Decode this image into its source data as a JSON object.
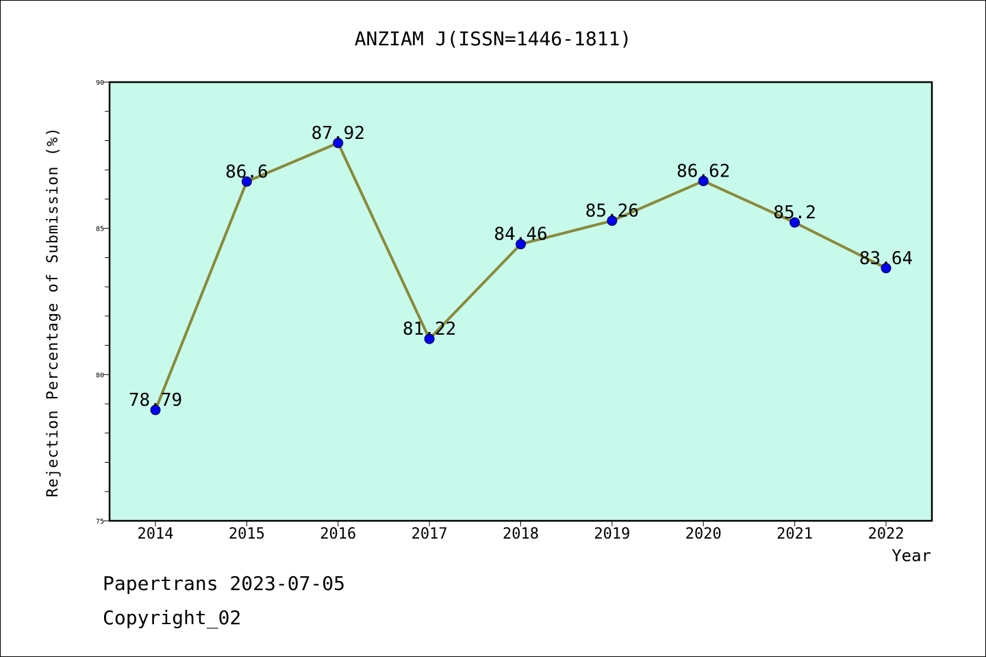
{
  "chart_data": {
    "type": "line",
    "title": "ANZIAM J(ISSN=1446-1811)",
    "xlabel": "Year",
    "ylabel": "Rejection Percentage of Submission (%)",
    "categories": [
      "2014",
      "2015",
      "2016",
      "2017",
      "2018",
      "2019",
      "2020",
      "2021",
      "2022"
    ],
    "values": [
      78.79,
      86.6,
      87.92,
      81.22,
      84.46,
      85.26,
      86.62,
      85.2,
      83.64
    ],
    "data_labels": [
      "78.79",
      "86.6",
      "87.92",
      "81.22",
      "84.46",
      "85.26",
      "86.62",
      "85.2",
      "83.64"
    ],
    "ylim": [
      75,
      90
    ],
    "y_ticks": [
      "75",
      "80",
      "85",
      "90"
    ],
    "grid": false,
    "colors": {
      "plot_background": "#c8faec",
      "line": "#8a8a3a",
      "marker": "#0000ee"
    }
  },
  "footer": {
    "line1": "Papertrans 2023-07-05",
    "line2": "Copyright_02"
  }
}
